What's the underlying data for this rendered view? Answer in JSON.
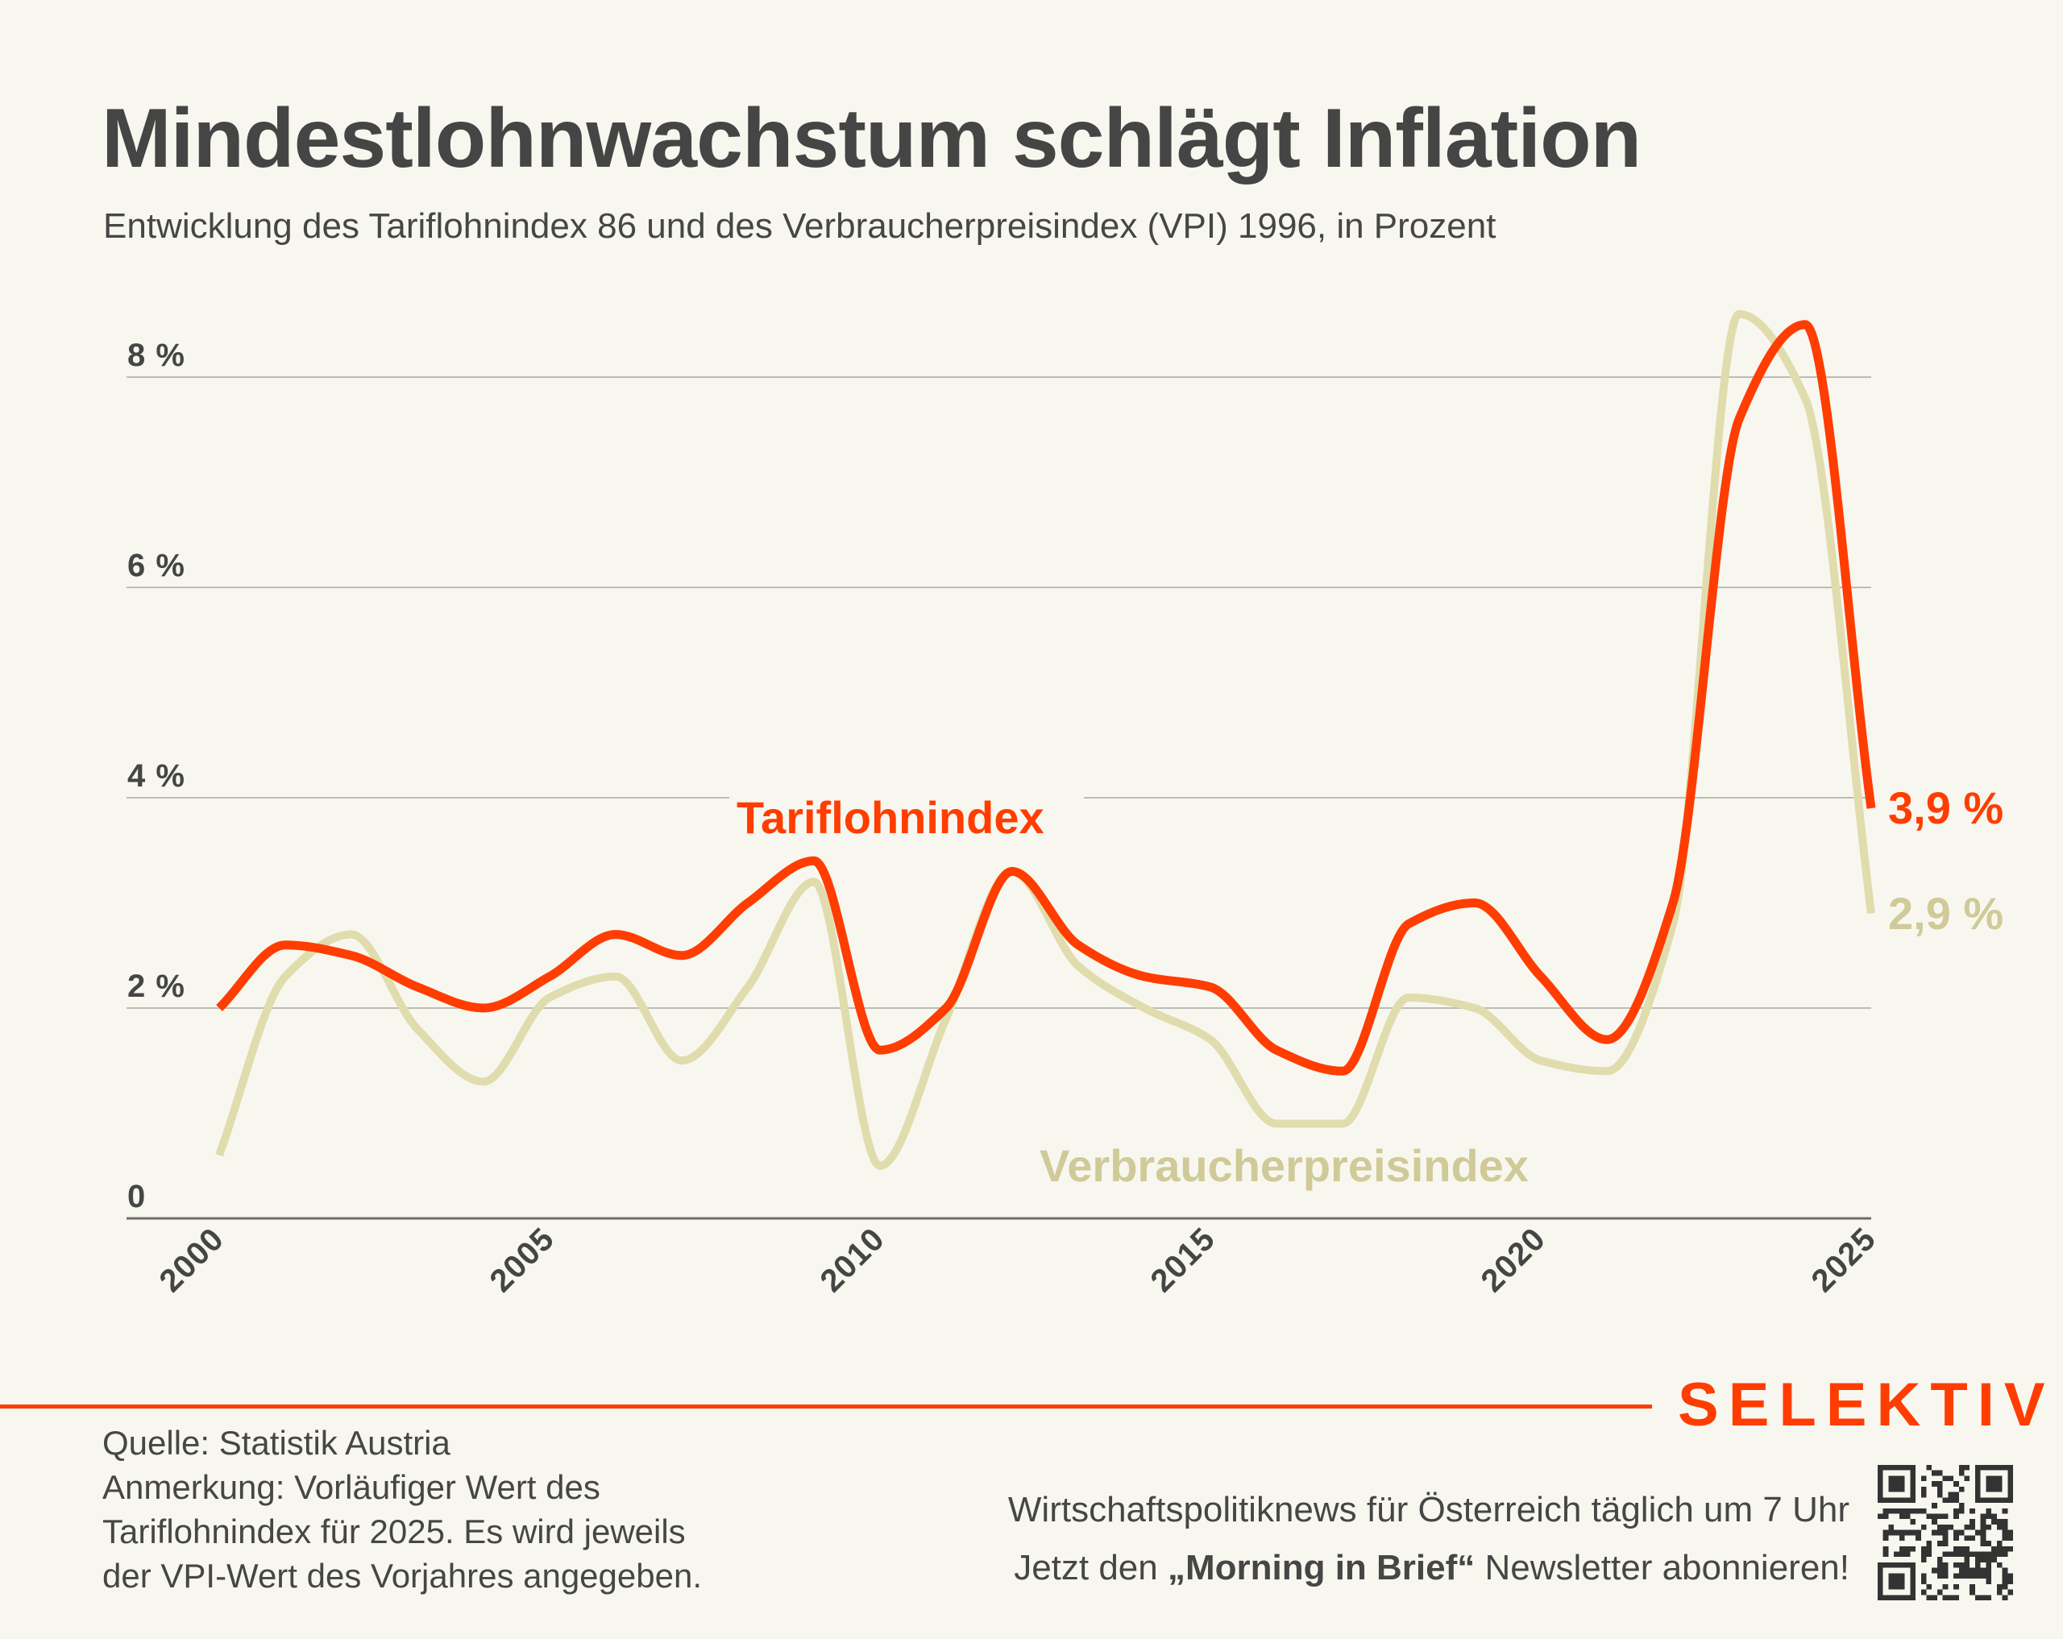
{
  "header": {
    "title": "Mindestlohnwachstum schlägt Inflation",
    "subtitle": "Entwicklung des Tariflohnindex 86 und des Verbraucherpreisindex (VPI) 1996, in Prozent"
  },
  "chart_data": {
    "type": "line",
    "title": "Mindestlohnwachstum schlägt Inflation",
    "subtitle": "Entwicklung des Tariflohnindex 86 und des Verbraucherpreisindex (VPI) 1996, in Prozent",
    "xlabel": "",
    "ylabel": "",
    "x": [
      2000,
      2001,
      2002,
      2003,
      2004,
      2005,
      2006,
      2007,
      2008,
      2009,
      2010,
      2011,
      2012,
      2013,
      2014,
      2015,
      2016,
      2017,
      2018,
      2019,
      2020,
      2021,
      2022,
      2023,
      2024,
      2025
    ],
    "xlim": [
      2000,
      2025
    ],
    "ylim": [
      0,
      8
    ],
    "y_ticks": [
      0,
      2,
      4,
      6,
      8
    ],
    "y_tick_labels": [
      "0",
      "2 %",
      "4 %",
      "6 %",
      "8 %"
    ],
    "x_ticks": [
      2000,
      2005,
      2010,
      2015,
      2020,
      2025
    ],
    "x_tick_labels": [
      "2000",
      "2005",
      "2010",
      "2015",
      "2020",
      "2025"
    ],
    "grid": "horizontal",
    "legend": "inline-labels",
    "series": [
      {
        "name": "Tariflohnindex",
        "color": "#ff3d00",
        "values": [
          2.0,
          2.6,
          2.5,
          2.2,
          2.0,
          2.3,
          2.7,
          2.5,
          3.0,
          3.4,
          1.6,
          2.0,
          3.3,
          2.6,
          2.3,
          2.2,
          1.6,
          1.4,
          2.8,
          3.0,
          2.3,
          1.7,
          3.0,
          7.6,
          8.5,
          3.9
        ],
        "end_label": "3,9 %"
      },
      {
        "name": "Verbraucherpreisindex",
        "color": "#e0dcae",
        "label_color": "#cfca98",
        "values": [
          0.6,
          2.3,
          2.7,
          1.8,
          1.3,
          2.1,
          2.3,
          1.5,
          2.2,
          3.2,
          0.5,
          1.9,
          3.3,
          2.4,
          2.0,
          1.7,
          0.9,
          0.9,
          2.1,
          2.0,
          1.5,
          1.4,
          2.8,
          8.6,
          7.8,
          2.9
        ],
        "end_label": "2,9 %"
      }
    ]
  },
  "footer": {
    "brand": "SELEKTIV",
    "brand_color": "#ff3d00",
    "notes": [
      "Quelle: Statistik Austria",
      "Anmerkung: Vorläufiger Wert des",
      "Tariflohnindex für 2025. Es wird jeweils",
      "der VPI-Wert des Vorjahres angegeben."
    ],
    "promo_line1": "Wirtschaftspolitiknews für Österreich täglich um 7 Uhr",
    "promo_line2_prefix": "Jetzt den ",
    "promo_line2_bold": "„Morning in Brief“",
    "promo_line2_suffix": " Newsletter abonnieren!",
    "qr_icon": "qr-code-icon"
  }
}
